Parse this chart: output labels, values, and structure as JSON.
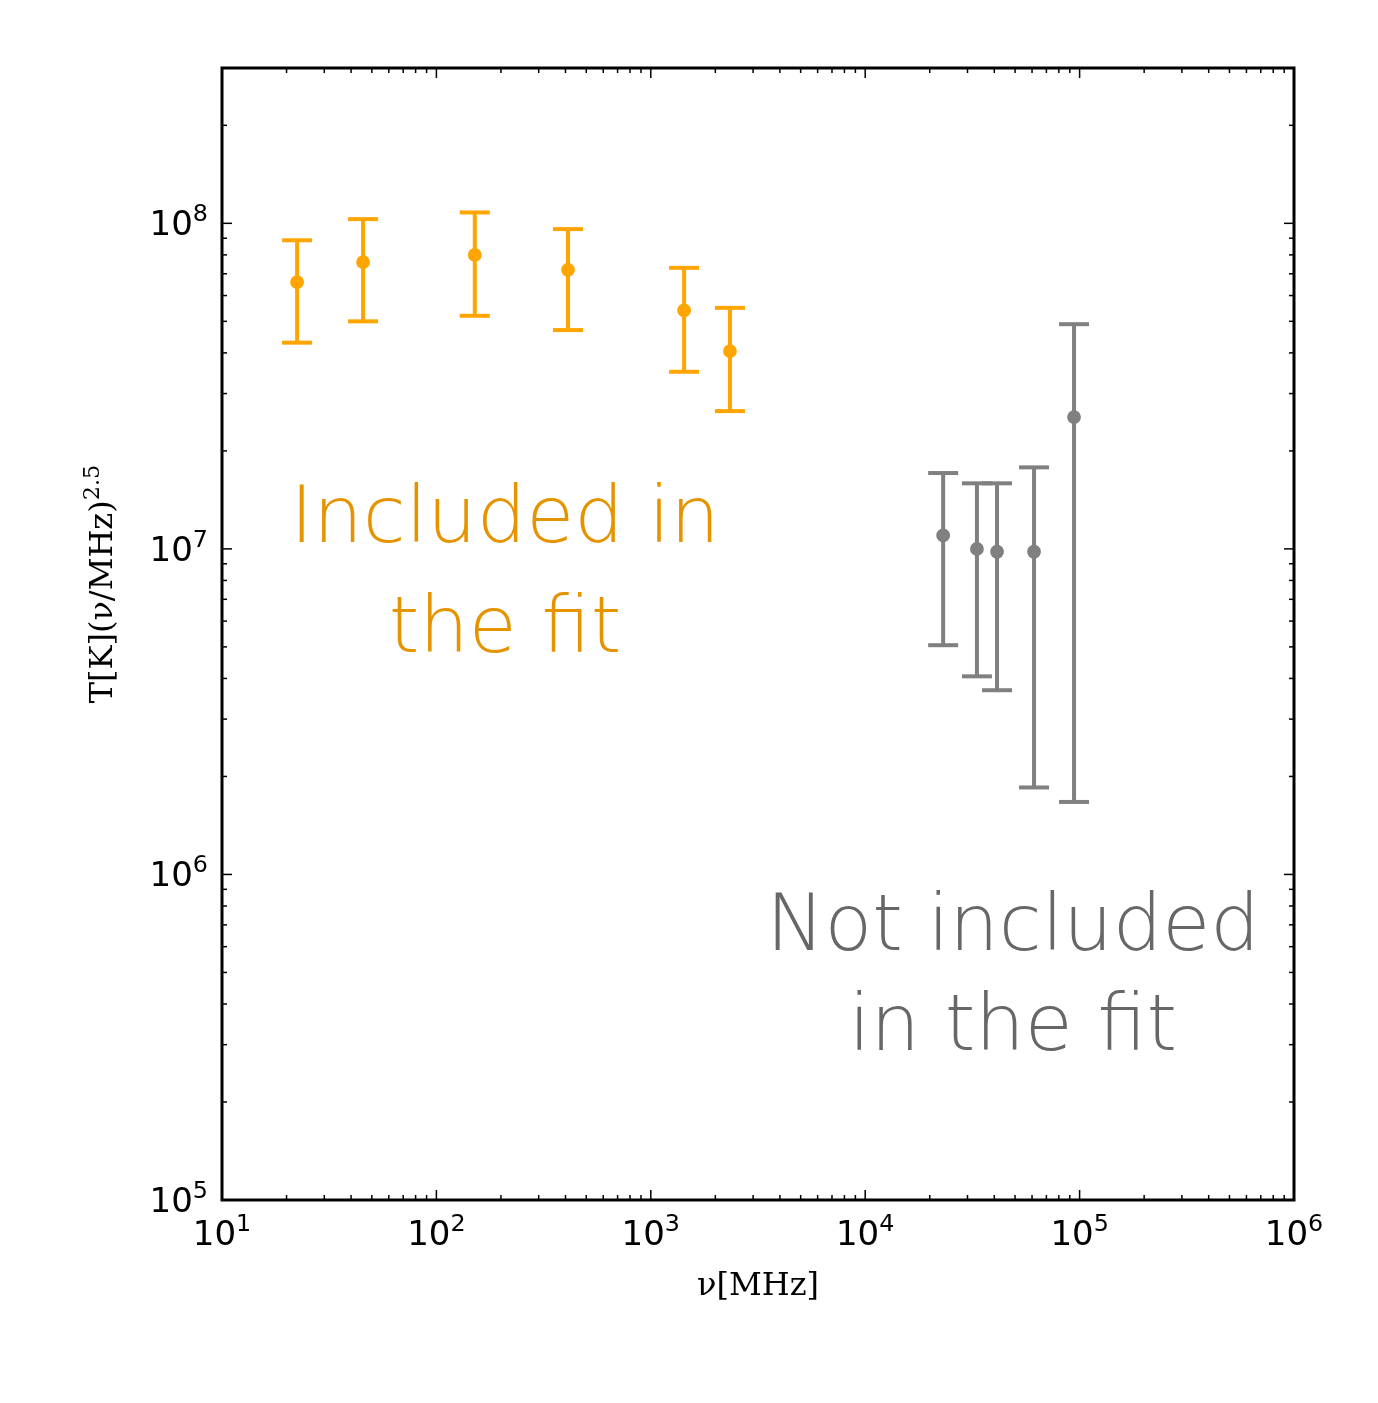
{
  "chart_data": {
    "type": "scatter",
    "xlabel": "ν[MHz]",
    "ylabel": "T[K](ν/MHz)$^{2.5}$",
    "log": "xy",
    "xlim": [
      10,
      1000000
    ],
    "ylim": [
      100000,
      300000000
    ],
    "xticks": [
      {
        "value": 10,
        "label": "10$^{1}$"
      },
      {
        "value": 20,
        "label": null
      },
      {
        "value": 30,
        "label": null
      },
      {
        "value": 40,
        "label": null
      },
      {
        "value": 50,
        "label": null
      },
      {
        "value": 60,
        "label": null
      },
      {
        "value": 70,
        "label": null
      },
      {
        "value": 80,
        "label": null
      },
      {
        "value": 90,
        "label": null
      },
      {
        "value": 100,
        "label": "10$^{2}$"
      },
      {
        "value": 200,
        "label": null
      },
      {
        "value": 300,
        "label": null
      },
      {
        "value": 400,
        "label": null
      },
      {
        "value": 500,
        "label": null
      },
      {
        "value": 600,
        "label": null
      },
      {
        "value": 700,
        "label": null
      },
      {
        "value": 800,
        "label": null
      },
      {
        "value": 900,
        "label": null
      },
      {
        "value": 1000,
        "label": "10$^{3}$"
      },
      {
        "value": 2000,
        "label": null
      },
      {
        "value": 3000,
        "label": null
      },
      {
        "value": 4000,
        "label": null
      },
      {
        "value": 5000,
        "label": null
      },
      {
        "value": 6000,
        "label": null
      },
      {
        "value": 7000,
        "label": null
      },
      {
        "value": 8000,
        "label": null
      },
      {
        "value": 9000,
        "label": null
      },
      {
        "value": 10000,
        "label": "10$^{4}$"
      },
      {
        "value": 20000,
        "label": null
      },
      {
        "value": 30000,
        "label": null
      },
      {
        "value": 40000,
        "label": null
      },
      {
        "value": 50000,
        "label": null
      },
      {
        "value": 60000,
        "label": null
      },
      {
        "value": 70000,
        "label": null
      },
      {
        "value": 80000,
        "label": null
      },
      {
        "value": 90000,
        "label": null
      },
      {
        "value": 100000,
        "label": "10$^{5}$"
      },
      {
        "value": 200000,
        "label": null
      },
      {
        "value": 300000,
        "label": null
      },
      {
        "value": 400000,
        "label": null
      },
      {
        "value": 500000,
        "label": null
      },
      {
        "value": 600000,
        "label": null
      },
      {
        "value": 700000,
        "label": null
      },
      {
        "value": 800000,
        "label": null
      },
      {
        "value": 900000,
        "label": null
      },
      {
        "value": 1000000,
        "label": "10$^{6}$"
      }
    ],
    "yticks": [
      {
        "value": 100000,
        "label": "10$^{5}$"
      },
      {
        "value": 200000,
        "label": null
      },
      {
        "value": 300000,
        "label": null
      },
      {
        "value": 400000,
        "label": null
      },
      {
        "value": 500000,
        "label": null
      },
      {
        "value": 600000,
        "label": null
      },
      {
        "value": 700000,
        "label": null
      },
      {
        "value": 800000,
        "label": null
      },
      {
        "value": 900000,
        "label": null
      },
      {
        "value": 1000000,
        "label": "10$^{6}$"
      },
      {
        "value": 2000000,
        "label": null
      },
      {
        "value": 3000000,
        "label": null
      },
      {
        "value": 4000000,
        "label": null
      },
      {
        "value": 5000000,
        "label": null
      },
      {
        "value": 6000000,
        "label": null
      },
      {
        "value": 7000000,
        "label": null
      },
      {
        "value": 8000000,
        "label": null
      },
      {
        "value": 9000000,
        "label": null
      },
      {
        "value": 10000000,
        "label": "10$^{7}$"
      },
      {
        "value": 20000000,
        "label": null
      },
      {
        "value": 30000000,
        "label": null
      },
      {
        "value": 40000000,
        "label": null
      },
      {
        "value": 50000000,
        "label": null
      },
      {
        "value": 60000000,
        "label": null
      },
      {
        "value": 70000000,
        "label": null
      },
      {
        "value": 80000000,
        "label": null
      },
      {
        "value": 90000000,
        "label": null
      },
      {
        "value": 100000000,
        "label": "10$^{8}$"
      },
      {
        "value": 200000000,
        "label": null
      },
      {
        "value": 300000000,
        "label": null
      }
    ],
    "grid": false,
    "marker": "circle",
    "series": [
      {
        "name": "Included in the fit",
        "color": "#ffa500",
        "x": [
          22.4,
          45.5,
          151,
          411,
          1430,
          2340
        ],
        "values": [
          66000000,
          76000000,
          80000000,
          72000000,
          54000000,
          40500000
        ],
        "errors": [
          [
            43000000,
            88700000
          ],
          [
            50000000,
            103000000
          ],
          [
            52000000,
            108000000
          ],
          [
            47000000,
            96000000
          ],
          [
            35000000,
            73000000
          ],
          [
            26500000,
            55000000
          ]
        ]
      },
      {
        "name": "Not included in the fit",
        "color": "#808080",
        "x": [
          23100,
          33200,
          41200,
          61300,
          94200
        ],
        "values": [
          11000000,
          10000000,
          9800000,
          9800000,
          25400000
        ],
        "errors": [
          [
            5060000,
            17100000
          ],
          [
            4060000,
            15900000
          ],
          [
            3680000,
            15900000
          ],
          [
            1850000,
            17800000
          ],
          [
            1670000,
            49000000
          ]
        ]
      }
    ]
  }
}
